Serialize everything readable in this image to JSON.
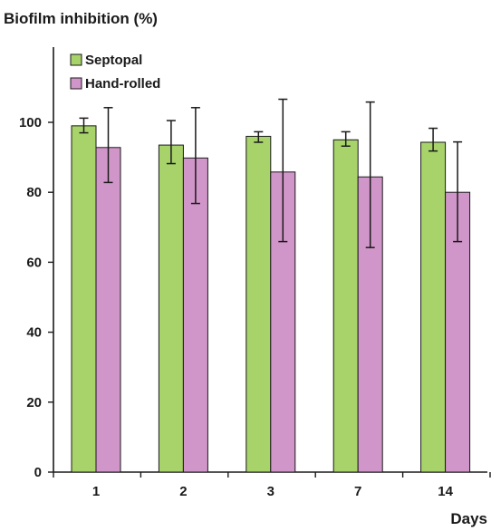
{
  "chart_data": {
    "type": "bar",
    "ylabel": "Biofilm inhibition (%)",
    "xlabel": "Days",
    "categories": [
      "1",
      "2",
      "3",
      "7",
      "14"
    ],
    "ylim": [
      0,
      100
    ],
    "yticks": [
      0,
      20,
      40,
      60,
      80,
      100
    ],
    "grid": false,
    "legend_position": "top-left",
    "series": [
      {
        "name": "Septopal",
        "color": "#a8d36a",
        "values": [
          99,
          93.5,
          96,
          95,
          94.3
        ],
        "errors": [
          [
            97,
            101.2
          ],
          [
            88.2,
            100.5
          ],
          [
            94.3,
            97.3
          ],
          [
            93.2,
            97.3
          ],
          [
            91.8,
            98.3
          ]
        ]
      },
      {
        "name": "Hand-rolled",
        "color": "#d196c9",
        "values": [
          92.8,
          89.8,
          85.8,
          84.4,
          80
        ],
        "errors": [
          [
            82.8,
            104.2
          ],
          [
            76.8,
            104.2
          ],
          [
            65.9,
            106.6
          ],
          [
            64.2,
            105.8
          ],
          [
            65.9,
            94.4
          ]
        ]
      }
    ]
  }
}
